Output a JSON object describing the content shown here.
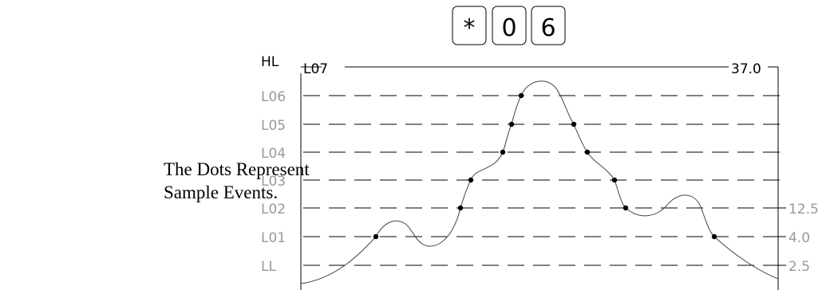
{
  "keypad": {
    "keys": [
      "*",
      "0",
      "6"
    ]
  },
  "caption": {
    "line1": "The Dots Represent",
    "line2": "Sample Events."
  },
  "top_line": {
    "left_label": "L07",
    "right_value": "37.0"
  },
  "header_label": "HL",
  "levels": [
    {
      "name": "L06",
      "value": ""
    },
    {
      "name": "L05",
      "value": ""
    },
    {
      "name": "L04",
      "value": ""
    },
    {
      "name": "L03",
      "value": ""
    },
    {
      "name": "L02",
      "value": "12.5"
    },
    {
      "name": "L01",
      "value": "4.0"
    },
    {
      "name": "LL",
      "value": "2.5"
    }
  ],
  "colors": {
    "ink": "#000000",
    "curve": "#444444"
  }
}
